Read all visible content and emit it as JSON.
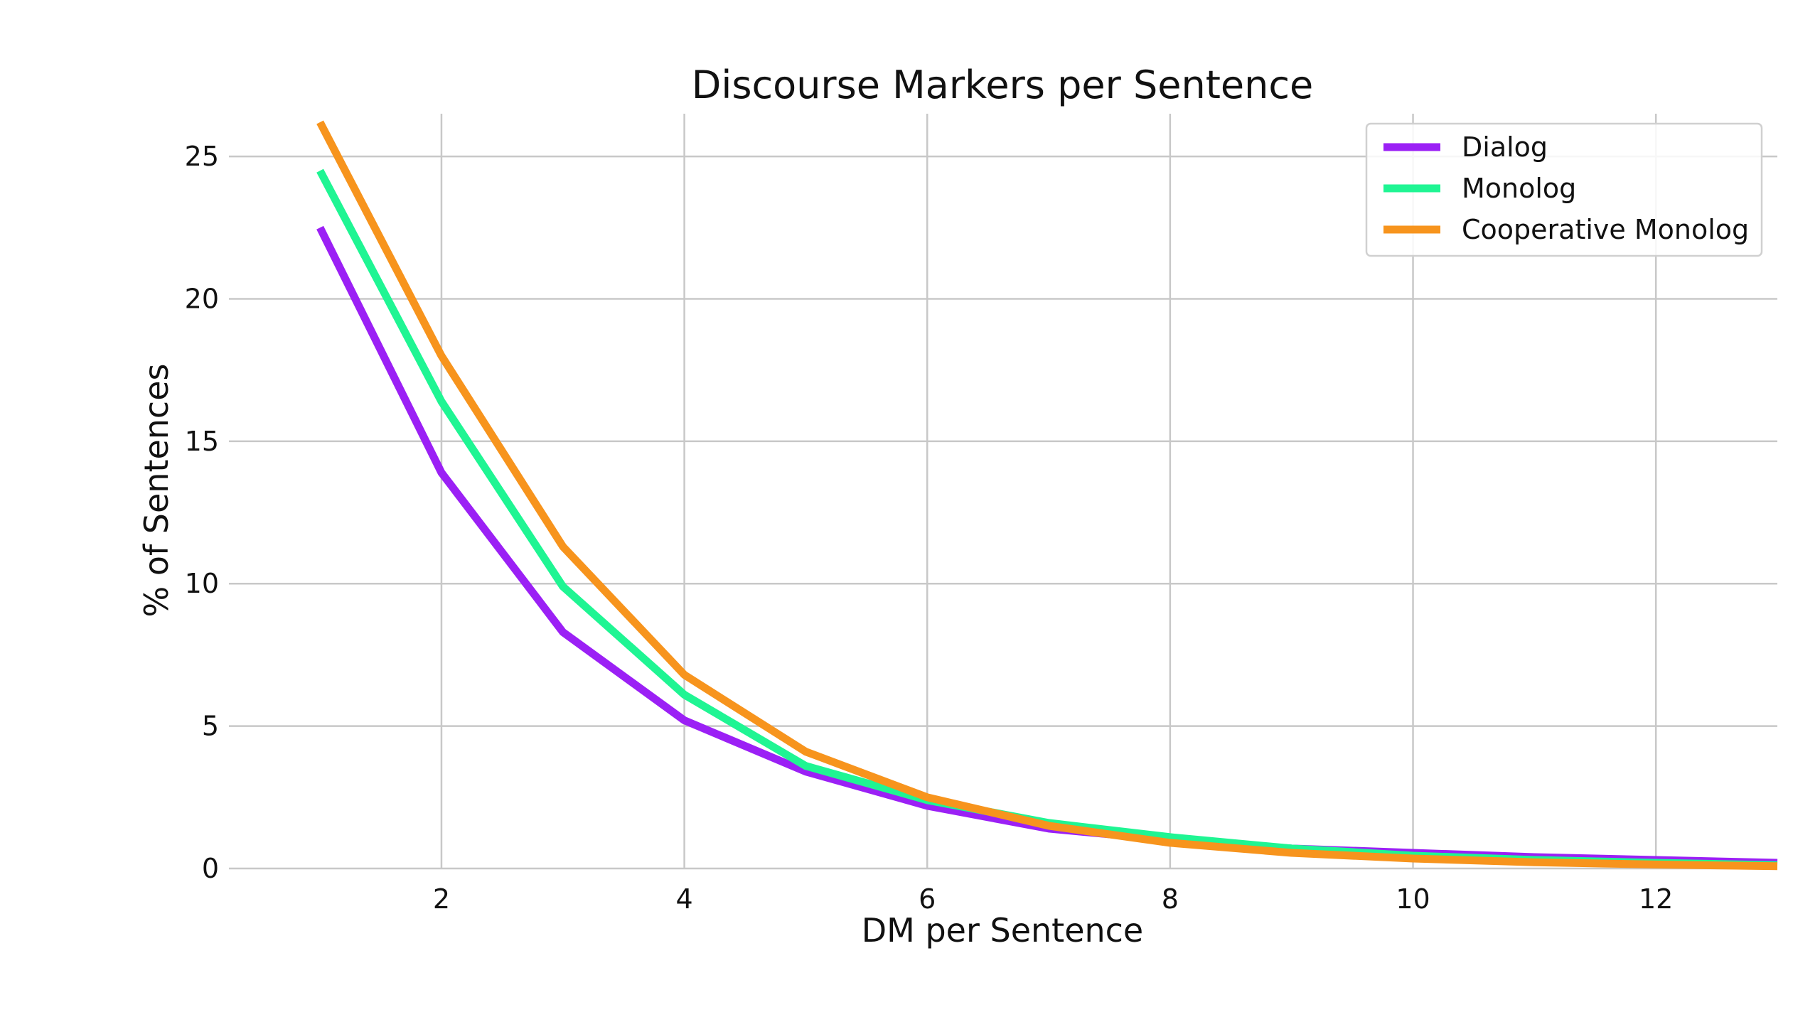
{
  "chart_data": {
    "type": "line",
    "title": "Discourse Markers per Sentence",
    "xlabel": "DM per Sentence",
    "ylabel": "% of Sentences",
    "xlim": [
      0.25,
      13
    ],
    "ylim": [
      0,
      26.5
    ],
    "xticks": [
      2,
      4,
      6,
      8,
      10,
      12
    ],
    "yticks": [
      0,
      5,
      10,
      15,
      20,
      25
    ],
    "grid": true,
    "legend_position": "top-right",
    "x": [
      1,
      2,
      3,
      4,
      5,
      6,
      7,
      8,
      9,
      10,
      11,
      12,
      13
    ],
    "series": [
      {
        "name": "Dialog",
        "color": "#9b20f5",
        "values": [
          22.5,
          13.9,
          8.3,
          5.2,
          3.4,
          2.2,
          1.4,
          1.0,
          0.7,
          0.55,
          0.4,
          0.3,
          0.2
        ]
      },
      {
        "name": "Monolog",
        "color": "#1ff593",
        "values": [
          24.5,
          16.4,
          9.9,
          6.1,
          3.6,
          2.4,
          1.6,
          1.1,
          0.7,
          0.45,
          0.3,
          0.2,
          0.12
        ]
      },
      {
        "name": "Cooperative Monolog",
        "color": "#f7941d",
        "values": [
          26.2,
          18.0,
          11.3,
          6.8,
          4.1,
          2.5,
          1.5,
          0.9,
          0.55,
          0.35,
          0.22,
          0.14,
          0.08
        ]
      }
    ]
  }
}
